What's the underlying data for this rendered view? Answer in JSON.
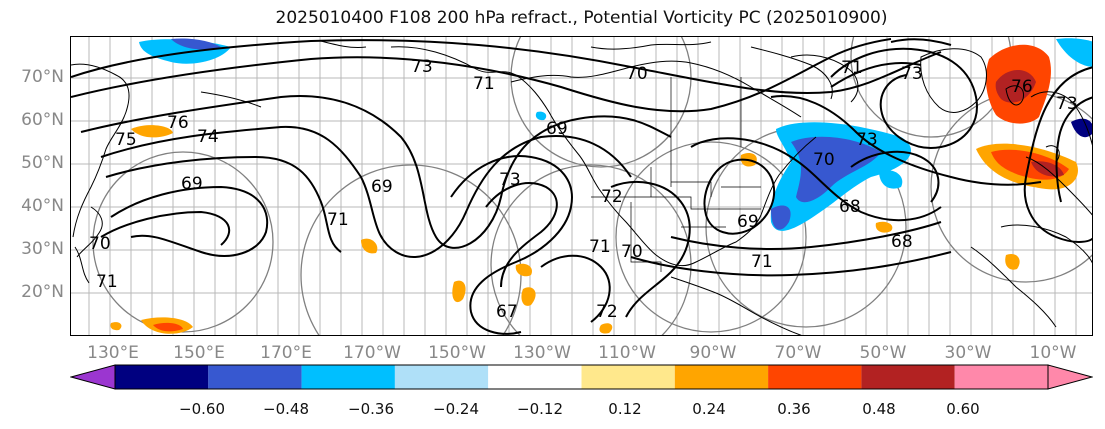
{
  "title": "2025010400 F108 200 hPa refract., Potential Vorticity PC (2025010900)",
  "map": {
    "lat_labels": [
      "70°N",
      "60°N",
      "50°N",
      "40°N",
      "30°N",
      "20°N"
    ],
    "lon_labels": [
      "130°E",
      "150°E",
      "170°E",
      "170°W",
      "150°W",
      "130°W",
      "110°W",
      "90°W",
      "70°W",
      "50°W",
      "30°W",
      "10°W"
    ],
    "contour_labels": [
      "73",
      "71",
      "70",
      "76",
      "75",
      "74",
      "69",
      "69",
      "73",
      "70",
      "71",
      "69",
      "71",
      "73",
      "70",
      "68",
      "69",
      "71",
      "72",
      "73",
      "76",
      "73",
      "67",
      "72",
      "71",
      "71",
      "68",
      "70"
    ]
  },
  "colorbar": {
    "ticks": [
      "−0.60",
      "−0.48",
      "−0.36",
      "−0.24",
      "−0.12",
      "0.12",
      "0.24",
      "0.36",
      "0.48",
      "0.60"
    ],
    "colors": [
      "#9b36d0",
      "#000080",
      "#3758d0",
      "#00bfff",
      "#afe0f8",
      "#ffffff",
      "#ffe88c",
      "#ffa500",
      "#ff4500",
      "#b22222",
      "#ff88aa",
      "#ffffff"
    ]
  }
}
